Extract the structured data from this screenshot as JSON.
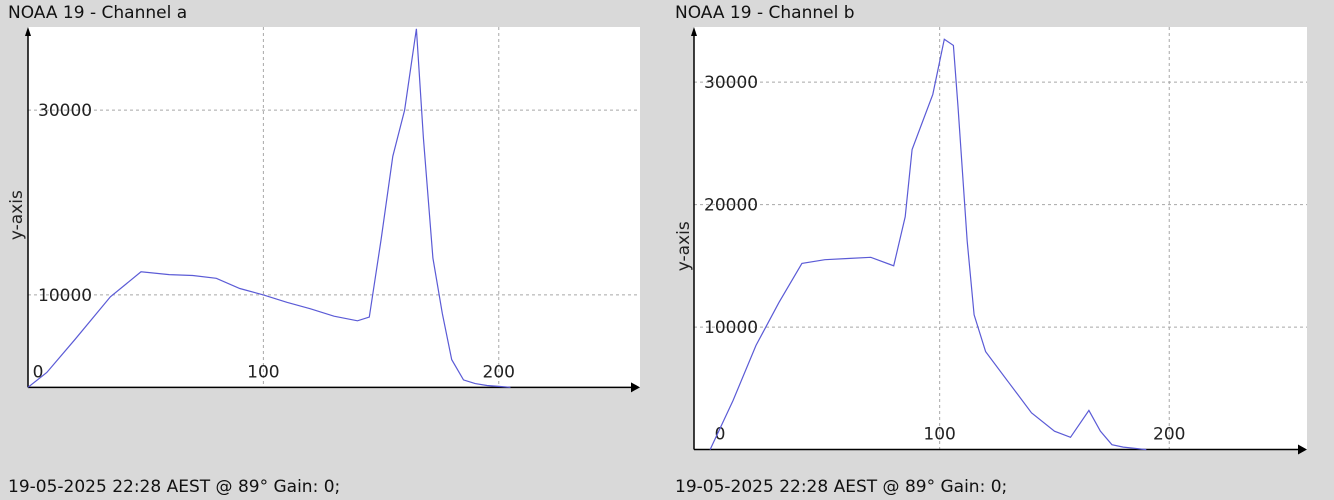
{
  "chart_data": [
    {
      "type": "line",
      "title": "NOAA 19 - Channel a",
      "ylabel": "y-axis",
      "xlabel": "",
      "footer": "19-05-2025 22:28 AEST @ 89° Gain: 0;",
      "xlim": [
        0,
        260
      ],
      "ylim": [
        -7000,
        39000
      ],
      "xticks": [
        0,
        100,
        200
      ],
      "yticks": [
        10000,
        30000
      ],
      "grid": true,
      "line_color": "#5b5bd6",
      "x": [
        0,
        8,
        20,
        35,
        48,
        60,
        70,
        80,
        90,
        100,
        110,
        120,
        130,
        140,
        145,
        150,
        155,
        160,
        165,
        168,
        172,
        176,
        180,
        185,
        190,
        195,
        200,
        205
      ],
      "y": [
        0,
        1600,
        5200,
        9800,
        12500,
        12200,
        12100,
        11800,
        10700,
        10000,
        9200,
        8500,
        7700,
        7200,
        7600,
        16000,
        25000,
        30000,
        38800,
        27000,
        14000,
        8000,
        3000,
        800,
        400,
        200,
        100,
        0
      ]
    },
    {
      "type": "line",
      "title": "NOAA 19 - Channel b",
      "ylabel": "y-axis",
      "xlabel": "",
      "footer": "19-05-2025 22:28 AEST @ 89° Gain: 0;",
      "xlim": [
        -7,
        260
      ],
      "ylim": [
        -200,
        34500
      ],
      "xticks": [
        0,
        100,
        200
      ],
      "yticks": [
        10000,
        20000,
        30000
      ],
      "grid": true,
      "line_color": "#5b5bd6",
      "x": [
        0,
        10,
        20,
        30,
        40,
        50,
        60,
        70,
        80,
        85,
        88,
        92,
        97,
        102,
        106,
        108,
        112,
        115,
        120,
        130,
        140,
        150,
        157,
        165,
        170,
        175,
        180,
        185,
        190
      ],
      "y": [
        0,
        4000,
        8500,
        12000,
        15200,
        15500,
        15600,
        15700,
        15000,
        19000,
        24500,
        26500,
        29000,
        33500,
        33000,
        28000,
        17000,
        11000,
        8000,
        5500,
        3000,
        1500,
        1000,
        3200,
        1500,
        400,
        200,
        100,
        0
      ]
    }
  ]
}
